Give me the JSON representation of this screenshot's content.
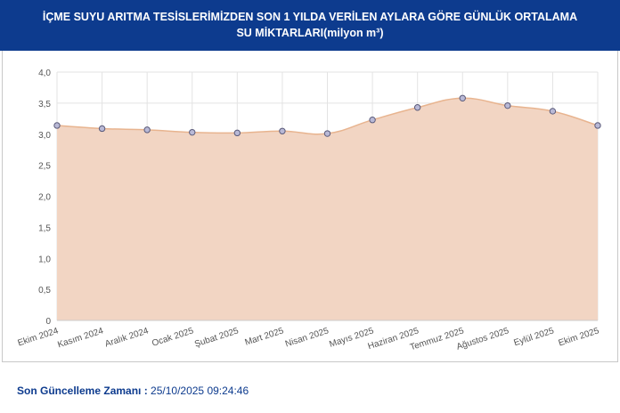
{
  "header": {
    "title": "İÇME SUYU ARITMA TESİSLERİMİZDEN SON 1 YILDA VERİLEN AYLARA GÖRE GÜNLÜK ORTALAMA SU MİKTARLARI(milyon m³)"
  },
  "footer": {
    "label": "Son Güncelleme Zamanı :",
    "value": "25/10/2025 09:24:46"
  },
  "colors": {
    "header_bg": "#0d3b8e",
    "area_fill": "#f2d5c3",
    "line": "#e8b48f",
    "marker_fill": "#b9b9d6",
    "marker_stroke": "#5a5a7a"
  },
  "chart_data": {
    "type": "area",
    "categories": [
      "Ekim 2024",
      "Kasım 2024",
      "Aralık 2024",
      "Ocak 2025",
      "Şubat 2025",
      "Mart 2025",
      "Nisan 2025",
      "Mayıs 2025",
      "Haziran 2025",
      "Temmuz 2025",
      "Ağustos 2025",
      "Eylül 2025",
      "Ekim 2025"
    ],
    "series": [
      {
        "values": [
          3.14,
          3.09,
          3.07,
          3.03,
          3.02,
          3.05,
          3.01,
          3.23,
          3.43,
          3.58,
          3.46,
          3.37,
          3.14
        ]
      }
    ],
    "ylim": [
      0,
      4.0
    ],
    "yticks": [
      "0",
      "0,5",
      "1,0",
      "1,5",
      "2,0",
      "2,5",
      "3,0",
      "3,5",
      "4,0"
    ],
    "ytick_values": [
      0,
      0.5,
      1.0,
      1.5,
      2.0,
      2.5,
      3.0,
      3.5,
      4.0
    ],
    "grid": true,
    "legend": "none"
  }
}
